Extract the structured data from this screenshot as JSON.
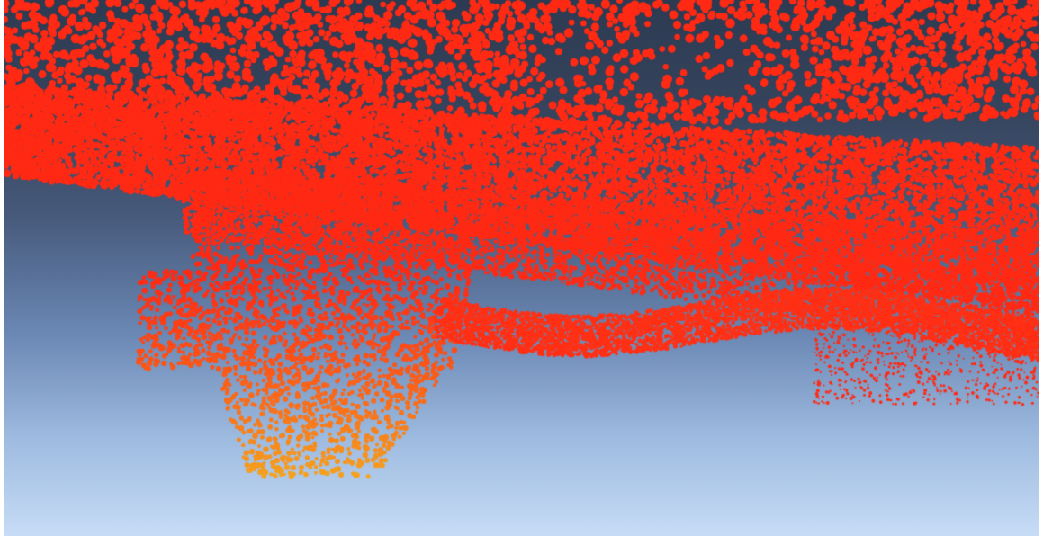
{
  "viewer": {
    "background_top": "#2c3a52",
    "background_bottom": "#c7dcf6"
  },
  "point_cloud": {
    "color_high": "#ff2a14",
    "color_low": "#f5a21e"
  }
}
